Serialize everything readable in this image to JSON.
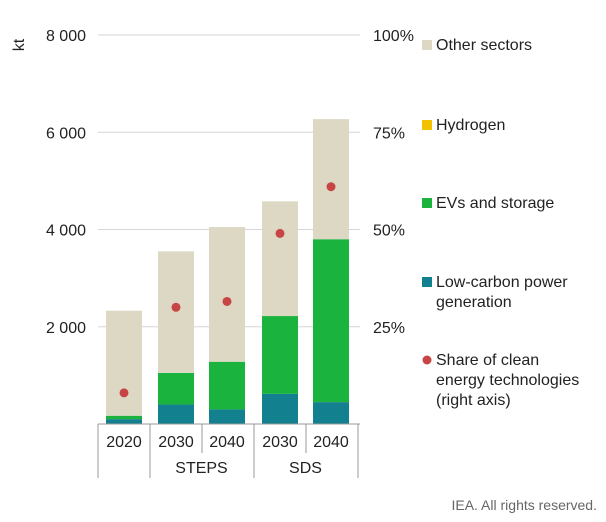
{
  "chart_data": {
    "type": "bar",
    "stacked": true,
    "ylabel": "kt",
    "ylim": [
      0,
      8000
    ],
    "yticks": [
      "2 000",
      "4 000",
      "6 000",
      "8 000"
    ],
    "ytick_values": [
      2000,
      4000,
      6000,
      8000
    ],
    "y2lim": [
      0,
      100
    ],
    "y2ticks": [
      "25%",
      "50%",
      "75%",
      "100%"
    ],
    "y2tick_values": [
      25,
      50,
      75,
      100
    ],
    "grid": true,
    "legend_position": "right",
    "categories": [
      "2020",
      "2030",
      "2040",
      "2030",
      "2040"
    ],
    "groups": [
      {
        "label": "",
        "start": 0,
        "end": 0
      },
      {
        "label": "STEPS",
        "start": 1,
        "end": 2
      },
      {
        "label": "SDS",
        "start": 3,
        "end": 4
      }
    ],
    "series": [
      {
        "name": "Low-carbon power generation",
        "color": "#12808f",
        "values": [
          100,
          400,
          300,
          620,
          450
        ]
      },
      {
        "name": "EVs and storage",
        "color": "#19b33e",
        "values": [
          70,
          650,
          980,
          1600,
          3350
        ]
      },
      {
        "name": "Hydrogen",
        "color": "#f2c200",
        "values": [
          0,
          0,
          0,
          0,
          0
        ]
      },
      {
        "name": "Other sectors",
        "color": "#ddd8c4",
        "values": [
          2160,
          2500,
          2770,
          2360,
          2470
        ]
      }
    ],
    "share": {
      "name": "Share of clean energy technologies (right axis)",
      "color": "#c84545",
      "values": [
        8,
        30,
        31.5,
        49,
        61
      ]
    },
    "legend": [
      {
        "name": "Other sectors",
        "color": "#ddd8c4",
        "marker": "square"
      },
      {
        "name": "Hydrogen",
        "color": "#f2c200",
        "marker": "square"
      },
      {
        "name": "EVs and storage",
        "color": "#19b33e",
        "marker": "square"
      },
      {
        "name": "Low-carbon power generation",
        "color": "#12808f",
        "marker": "square"
      },
      {
        "name": "Share of clean energy technologies (right axis)",
        "color": "#c84545",
        "marker": "circle"
      }
    ]
  },
  "footer": "IEA. All rights reserved."
}
